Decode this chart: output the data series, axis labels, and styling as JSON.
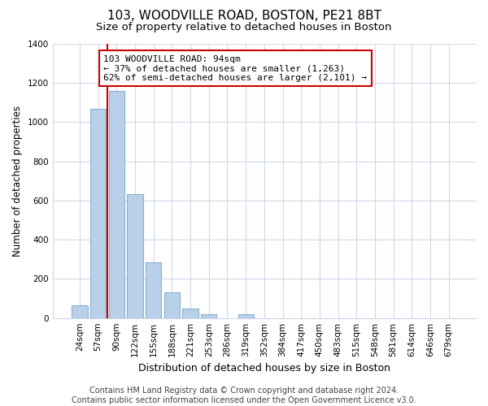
{
  "title": "103, WOODVILLE ROAD, BOSTON, PE21 8BT",
  "subtitle": "Size of property relative to detached houses in Boston",
  "xlabel": "Distribution of detached houses by size in Boston",
  "ylabel": "Number of detached properties",
  "bar_labels": [
    "24sqm",
    "57sqm",
    "90sqm",
    "122sqm",
    "155sqm",
    "188sqm",
    "221sqm",
    "253sqm",
    "286sqm",
    "319sqm",
    "352sqm",
    "384sqm",
    "417sqm",
    "450sqm",
    "483sqm",
    "515sqm",
    "548sqm",
    "581sqm",
    "614sqm",
    "646sqm",
    "679sqm"
  ],
  "bar_values": [
    65,
    1070,
    1160,
    635,
    285,
    130,
    48,
    20,
    0,
    20,
    0,
    0,
    0,
    0,
    0,
    0,
    0,
    0,
    0,
    0,
    0
  ],
  "bar_color": "#b8d0e8",
  "bar_edge_color": "#8ab0d0",
  "vline_x": 1.5,
  "vline_color": "#cc0000",
  "annotation_text": "103 WOODVILLE ROAD: 94sqm\n← 37% of detached houses are smaller (1,263)\n62% of semi-detached houses are larger (2,101) →",
  "annotation_box_facecolor": "white",
  "annotation_box_edgecolor": "#cc0000",
  "ylim": [
    0,
    1400
  ],
  "yticks": [
    0,
    200,
    400,
    600,
    800,
    1000,
    1200,
    1400
  ],
  "footnote": "Contains HM Land Registry data © Crown copyright and database right 2024.\nContains public sector information licensed under the Open Government Licence v3.0.",
  "background_color": "#ffffff",
  "plot_bg_color": "#ffffff",
  "grid_color": "#d0d8e8",
  "title_fontsize": 11,
  "subtitle_fontsize": 9.5,
  "xlabel_fontsize": 9,
  "ylabel_fontsize": 8.5,
  "tick_fontsize": 7.5,
  "footnote_fontsize": 7
}
